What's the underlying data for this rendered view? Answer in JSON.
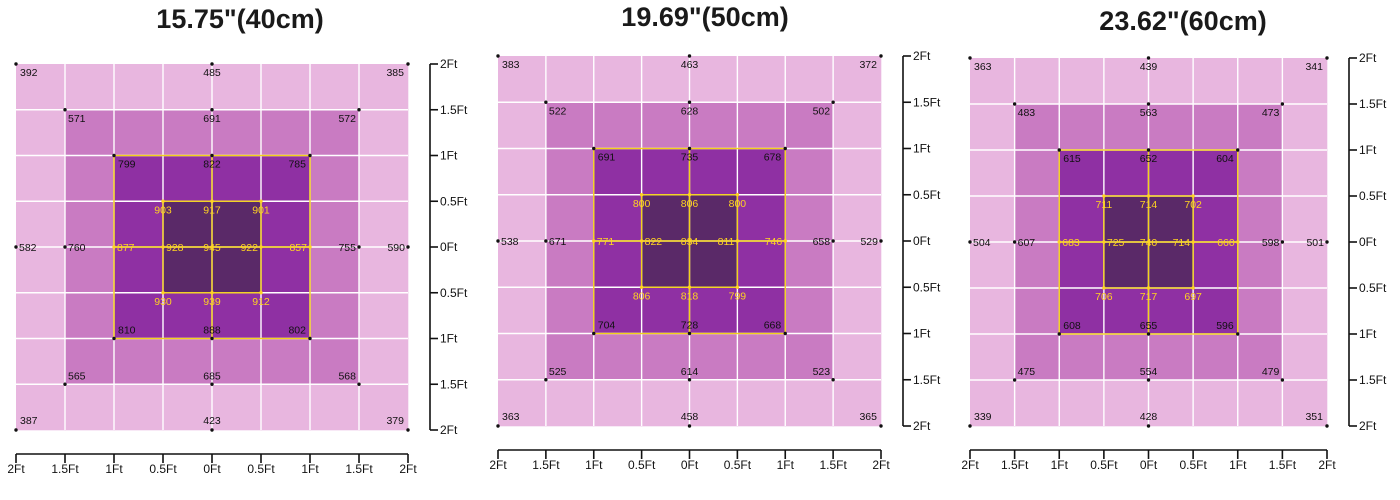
{
  "colors": {
    "level1": "#e8b6df",
    "level2": "#c97bc2",
    "level3": "#8f30a3",
    "level4": "#5a2968",
    "label_dark": "#111111",
    "label_light": "#ffd321",
    "dot": "#111111"
  },
  "chart_data": [
    {
      "type": "heatmap",
      "title": "15.75\"(40cm)",
      "x_ticks": [
        "2Ft",
        "1.5Ft",
        "1Ft",
        "0.5Ft",
        "0Ft",
        "0.5Ft",
        "1Ft",
        "1.5Ft",
        "2Ft"
      ],
      "y_ticks": [
        "2Ft",
        "1.5Ft",
        "1Ft",
        "0.5Ft",
        "0Ft",
        "0.5Ft",
        "1Ft",
        "1.5Ft",
        "2Ft"
      ],
      "xlim": [
        -2,
        2
      ],
      "ylim": [
        -2,
        2
      ],
      "points": [
        {
          "x": -2,
          "y": 2,
          "value": 392
        },
        {
          "x": 0,
          "y": 2,
          "value": 485
        },
        {
          "x": 2,
          "y": 2,
          "value": 385
        },
        {
          "x": -1.5,
          "y": 1.5,
          "value": 571
        },
        {
          "x": 0,
          "y": 1.5,
          "value": 691
        },
        {
          "x": 1.5,
          "y": 1.5,
          "value": 572
        },
        {
          "x": -1,
          "y": 1,
          "value": 799
        },
        {
          "x": 0,
          "y": 1,
          "value": 822
        },
        {
          "x": 1,
          "y": 1,
          "value": 785
        },
        {
          "x": -0.5,
          "y": 0.5,
          "value": 903
        },
        {
          "x": 0,
          "y": 0.5,
          "value": 917
        },
        {
          "x": 0.5,
          "y": 0.5,
          "value": 901
        },
        {
          "x": -2,
          "y": 0,
          "value": 582
        },
        {
          "x": -1.5,
          "y": 0,
          "value": 760
        },
        {
          "x": -1,
          "y": 0,
          "value": 877
        },
        {
          "x": -0.5,
          "y": 0,
          "value": 928
        },
        {
          "x": 0,
          "y": 0,
          "value": 945
        },
        {
          "x": 0.5,
          "y": 0,
          "value": 922
        },
        {
          "x": 1,
          "y": 0,
          "value": 857
        },
        {
          "x": 1.5,
          "y": 0,
          "value": 755
        },
        {
          "x": 2,
          "y": 0,
          "value": 590
        },
        {
          "x": -0.5,
          "y": -0.5,
          "value": 930
        },
        {
          "x": 0,
          "y": -0.5,
          "value": 939
        },
        {
          "x": 0.5,
          "y": -0.5,
          "value": 912
        },
        {
          "x": -1,
          "y": -1,
          "value": 810
        },
        {
          "x": 0,
          "y": -1,
          "value": 888
        },
        {
          "x": 1,
          "y": -1,
          "value": 802
        },
        {
          "x": -1.5,
          "y": -1.5,
          "value": 565
        },
        {
          "x": 0,
          "y": -1.5,
          "value": 685
        },
        {
          "x": 1.5,
          "y": -1.5,
          "value": 568
        },
        {
          "x": -2,
          "y": -2,
          "value": 387
        },
        {
          "x": 0,
          "y": -2,
          "value": 423
        },
        {
          "x": 2,
          "y": -2,
          "value": 379
        }
      ]
    },
    {
      "type": "heatmap",
      "title": "19.69\"(50cm)",
      "x_ticks": [
        "2Ft",
        "1.5Ft",
        "1Ft",
        "0.5Ft",
        "0Ft",
        "0.5Ft",
        "1Ft",
        "1.5Ft",
        "2Ft"
      ],
      "y_ticks": [
        "2Ft",
        "1.5Ft",
        "1Ft",
        "0.5Ft",
        "0Ft",
        "0.5Ft",
        "1Ft",
        "1.5Ft",
        "2Ft"
      ],
      "xlim": [
        -2,
        2
      ],
      "ylim": [
        -2,
        2
      ],
      "points": [
        {
          "x": -2,
          "y": 2,
          "value": 383
        },
        {
          "x": 0,
          "y": 2,
          "value": 463
        },
        {
          "x": 2,
          "y": 2,
          "value": 372
        },
        {
          "x": -1.5,
          "y": 1.5,
          "value": 522
        },
        {
          "x": 0,
          "y": 1.5,
          "value": 628
        },
        {
          "x": 1.5,
          "y": 1.5,
          "value": 502
        },
        {
          "x": -1,
          "y": 1,
          "value": 691
        },
        {
          "x": 0,
          "y": 1,
          "value": 735
        },
        {
          "x": 1,
          "y": 1,
          "value": 678
        },
        {
          "x": -0.5,
          "y": 0.5,
          "value": 800
        },
        {
          "x": 0,
          "y": 0.5,
          "value": 806
        },
        {
          "x": 0.5,
          "y": 0.5,
          "value": 800
        },
        {
          "x": -2,
          "y": 0,
          "value": 538
        },
        {
          "x": -1.5,
          "y": 0,
          "value": 671
        },
        {
          "x": -1,
          "y": 0,
          "value": 771
        },
        {
          "x": -0.5,
          "y": 0,
          "value": 822
        },
        {
          "x": 0,
          "y": 0,
          "value": 834
        },
        {
          "x": 0.5,
          "y": 0,
          "value": 811
        },
        {
          "x": 1,
          "y": 0,
          "value": 746
        },
        {
          "x": 1.5,
          "y": 0,
          "value": 658
        },
        {
          "x": 2,
          "y": 0,
          "value": 529
        },
        {
          "x": -0.5,
          "y": -0.5,
          "value": 806
        },
        {
          "x": 0,
          "y": -0.5,
          "value": 818
        },
        {
          "x": 0.5,
          "y": -0.5,
          "value": 799
        },
        {
          "x": -1,
          "y": -1,
          "value": 704
        },
        {
          "x": 0,
          "y": -1,
          "value": 728
        },
        {
          "x": 1,
          "y": -1,
          "value": 668
        },
        {
          "x": -1.5,
          "y": -1.5,
          "value": 525
        },
        {
          "x": 0,
          "y": -1.5,
          "value": 614
        },
        {
          "x": 1.5,
          "y": -1.5,
          "value": 523
        },
        {
          "x": -2,
          "y": -2,
          "value": 363
        },
        {
          "x": 0,
          "y": -2,
          "value": 458
        },
        {
          "x": 2,
          "y": -2,
          "value": 365
        }
      ]
    },
    {
      "type": "heatmap",
      "title": "23.62\"(60cm)",
      "x_ticks": [
        "2Ft",
        "1.5Ft",
        "1Ft",
        "0.5Ft",
        "0Ft",
        "0.5Ft",
        "1Ft",
        "1.5Ft",
        "2Ft"
      ],
      "y_ticks": [
        "2Ft",
        "1.5Ft",
        "1Ft",
        "0.5Ft",
        "0Ft",
        "0.5Ft",
        "1Ft",
        "1.5Ft",
        "2Ft"
      ],
      "xlim": [
        -2,
        2
      ],
      "ylim": [
        -2,
        2
      ],
      "points": [
        {
          "x": -2,
          "y": 2,
          "value": 363
        },
        {
          "x": 0,
          "y": 2,
          "value": 439
        },
        {
          "x": 2,
          "y": 2,
          "value": 341
        },
        {
          "x": -1.5,
          "y": 1.5,
          "value": 483
        },
        {
          "x": 0,
          "y": 1.5,
          "value": 563
        },
        {
          "x": 1.5,
          "y": 1.5,
          "value": 473
        },
        {
          "x": -1,
          "y": 1,
          "value": 615
        },
        {
          "x": 0,
          "y": 1,
          "value": 652
        },
        {
          "x": 1,
          "y": 1,
          "value": 604
        },
        {
          "x": -0.5,
          "y": 0.5,
          "value": 711
        },
        {
          "x": 0,
          "y": 0.5,
          "value": 714
        },
        {
          "x": 0.5,
          "y": 0.5,
          "value": 702
        },
        {
          "x": -2,
          "y": 0,
          "value": 504
        },
        {
          "x": -1.5,
          "y": 0,
          "value": 607
        },
        {
          "x": -1,
          "y": 0,
          "value": 683
        },
        {
          "x": -0.5,
          "y": 0,
          "value": 725
        },
        {
          "x": 0,
          "y": 0,
          "value": 740
        },
        {
          "x": 0.5,
          "y": 0,
          "value": 714
        },
        {
          "x": 1,
          "y": 0,
          "value": 660
        },
        {
          "x": 1.5,
          "y": 0,
          "value": 598
        },
        {
          "x": 2,
          "y": 0,
          "value": 501
        },
        {
          "x": -0.5,
          "y": -0.5,
          "value": 706
        },
        {
          "x": 0,
          "y": -0.5,
          "value": 717
        },
        {
          "x": 0.5,
          "y": -0.5,
          "value": 697
        },
        {
          "x": -1,
          "y": -1,
          "value": 608
        },
        {
          "x": 0,
          "y": -1,
          "value": 655
        },
        {
          "x": 1,
          "y": -1,
          "value": 596
        },
        {
          "x": -1.5,
          "y": -1.5,
          "value": 475
        },
        {
          "x": 0,
          "y": -1.5,
          "value": 554
        },
        {
          "x": 1.5,
          "y": -1.5,
          "value": 479
        },
        {
          "x": -2,
          "y": -2,
          "value": 339
        },
        {
          "x": 0,
          "y": -2,
          "value": 428
        },
        {
          "x": 2,
          "y": -2,
          "value": 351
        }
      ]
    }
  ]
}
